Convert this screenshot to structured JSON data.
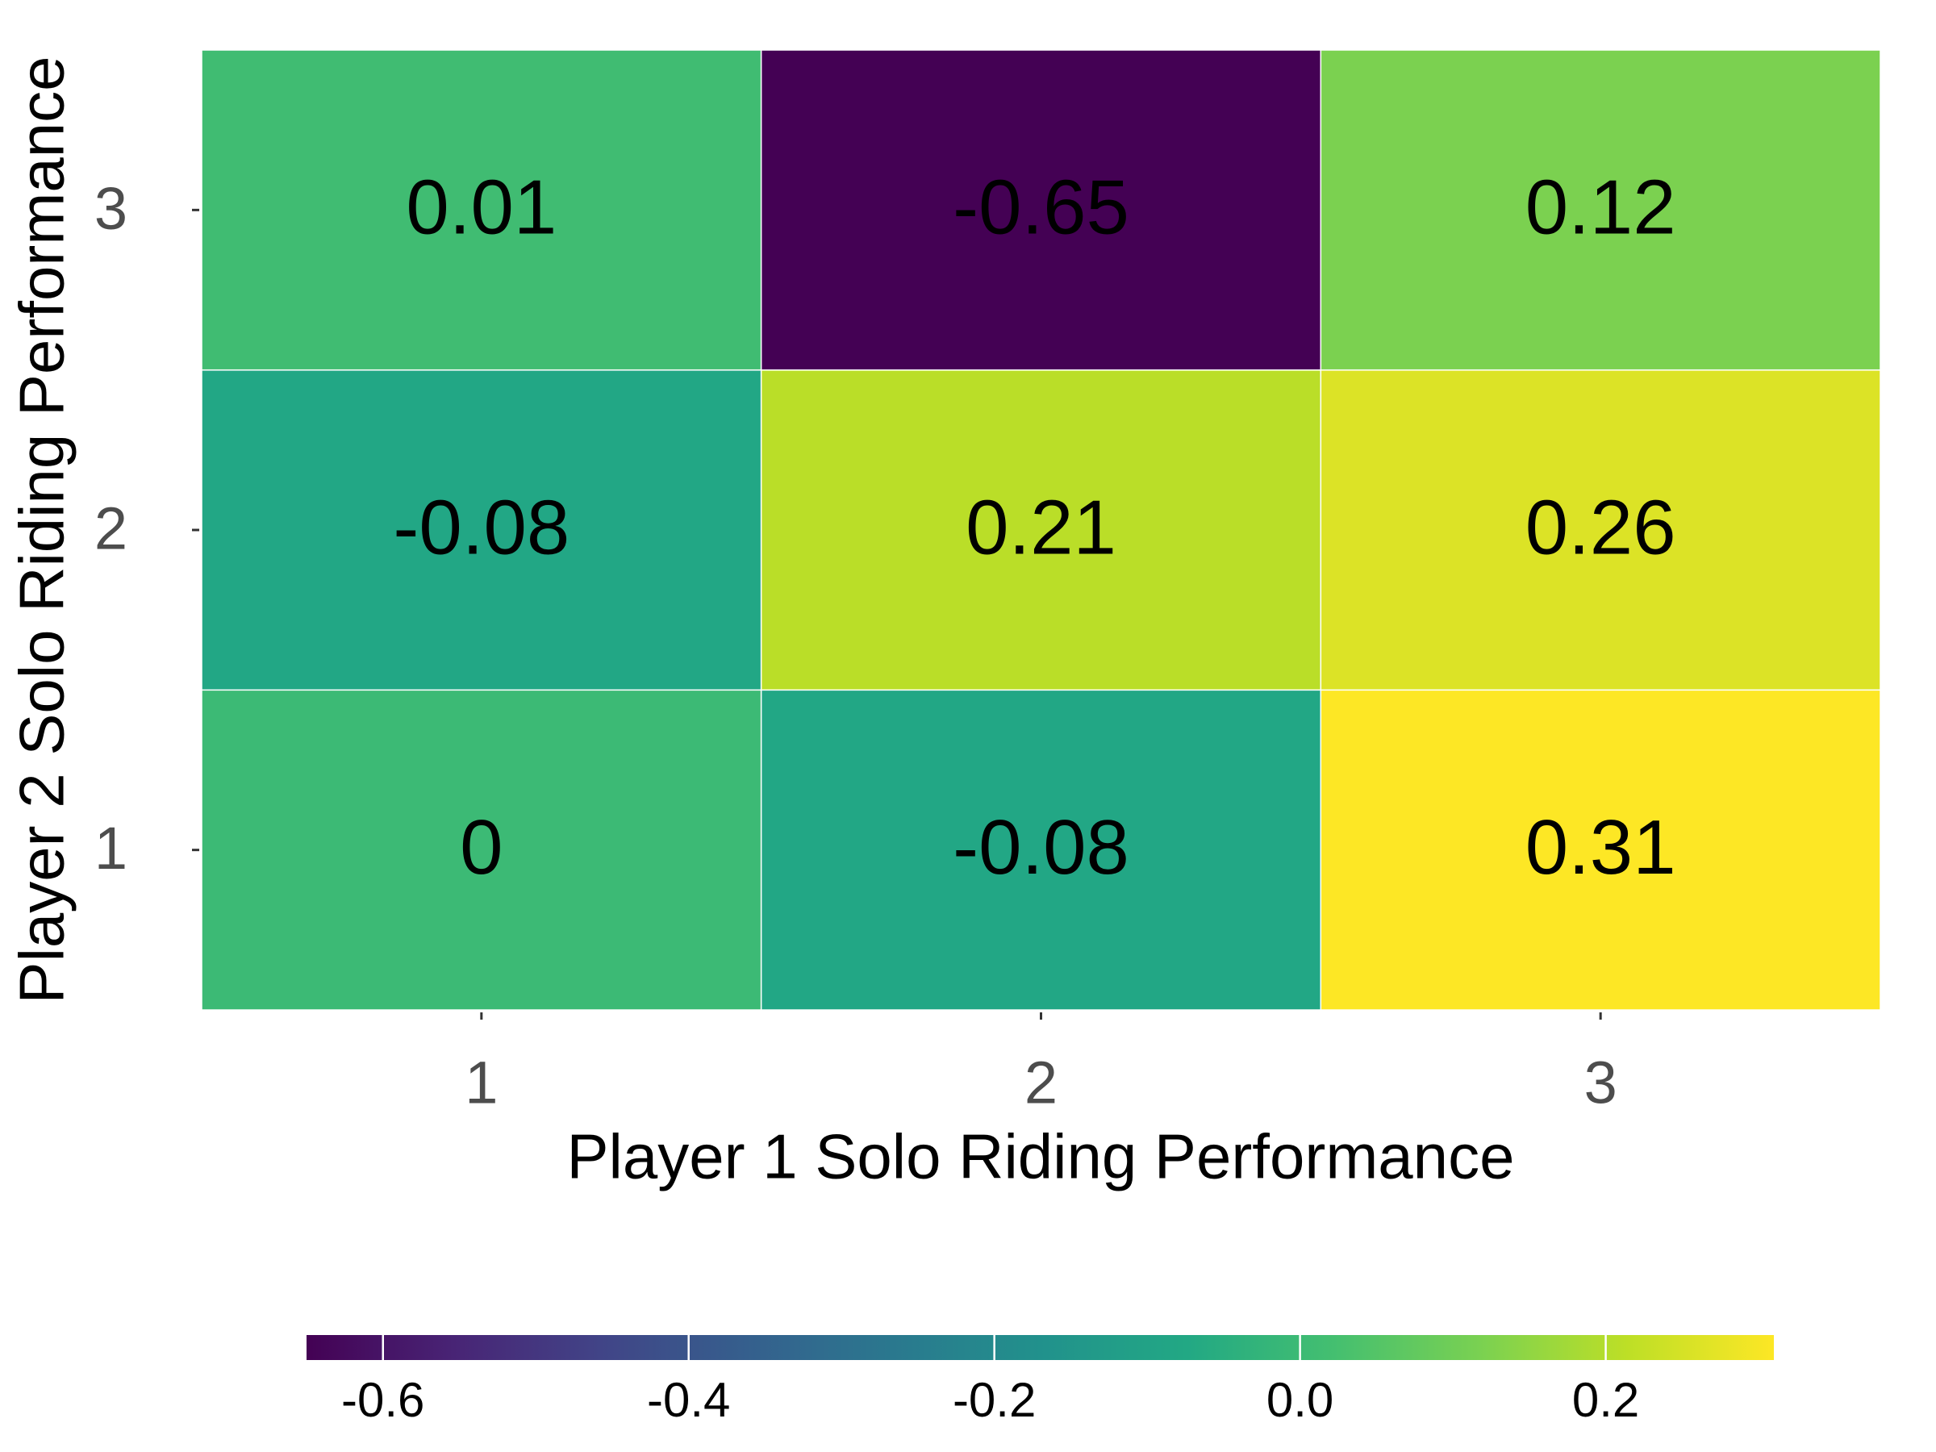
{
  "chart_data": {
    "type": "heatmap",
    "x_label": "Player 1 Solo Riding Performance",
    "y_label": "Player 2 Solo Riding Performance",
    "x_categories": [
      1,
      2,
      3
    ],
    "y_categories": [
      1,
      2,
      3
    ],
    "values": [
      [
        0,
        -0.08,
        0.31
      ],
      [
        -0.08,
        0.21,
        0.26
      ],
      [
        0.01,
        -0.65,
        0.12
      ]
    ],
    "colormap": "viridis",
    "clim": [
      -0.65,
      0.31
    ],
    "cticks": [
      -0.6,
      -0.4,
      -0.2,
      {
        "value": 0,
        "label": "0.0"
      },
      0.2
    ]
  }
}
